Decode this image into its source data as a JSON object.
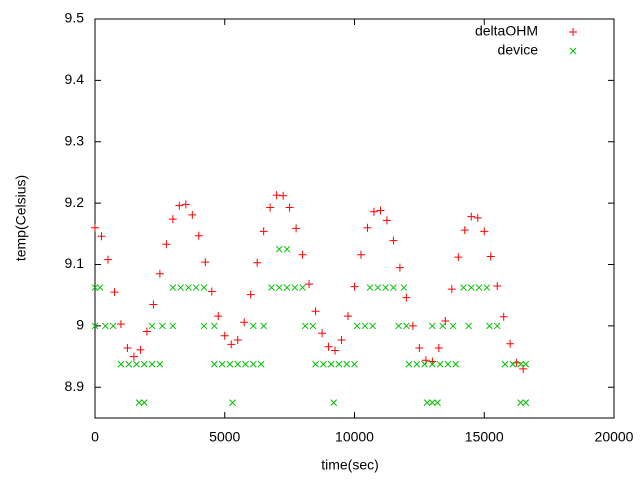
{
  "chart_data": {
    "type": "scatter",
    "xlabel": "time(sec)",
    "ylabel": "temp(Celsius)",
    "xlim": [
      0,
      20000
    ],
    "xticks": [
      0,
      5000,
      10000,
      15000,
      20000
    ],
    "ylim": [
      8.85,
      9.5
    ],
    "yticks": [
      8.9,
      9,
      9.1,
      9.2,
      9.3,
      9.4,
      9.5
    ],
    "legend": "top-right",
    "series": [
      {
        "name": "deltaOHM",
        "color": "#ff0000",
        "marker": "plus",
        "x": [
          0,
          250,
          500,
          750,
          1000,
          1250,
          1500,
          1750,
          2000,
          2250,
          2500,
          2750,
          3000,
          3250,
          3500,
          3750,
          4000,
          4250,
          4500,
          4750,
          5000,
          5250,
          5500,
          5750,
          6000,
          6250,
          6500,
          6750,
          7000,
          7250,
          7500,
          7750,
          8000,
          8250,
          8500,
          8750,
          9000,
          9250,
          9500,
          9750,
          10000,
          10250,
          10500,
          10750,
          11000,
          11250,
          11500,
          11750,
          12000,
          12250,
          12500,
          12750,
          13000,
          13250,
          13500,
          13750,
          14000,
          14250,
          14500,
          14750,
          15000,
          15250,
          15500,
          15750,
          16000,
          16250,
          16500
        ],
        "values": [
          9.16,
          9.146,
          9.108,
          9.055,
          9.003,
          8.964,
          8.95,
          8.961,
          8.991,
          9.035,
          9.085,
          9.133,
          9.174,
          9.196,
          9.198,
          9.181,
          9.147,
          9.104,
          9.056,
          9.016,
          8.984,
          8.97,
          8.977,
          9.006,
          9.051,
          9.103,
          9.154,
          9.193,
          9.213,
          9.212,
          9.193,
          9.159,
          9.116,
          9.068,
          9.024,
          8.988,
          8.966,
          8.96,
          8.977,
          9.016,
          9.064,
          9.116,
          9.16,
          9.186,
          9.188,
          9.172,
          9.139,
          9.095,
          9.046,
          9.0,
          8.964,
          8.944,
          8.942,
          8.964,
          9.008,
          9.06,
          9.112,
          9.156,
          9.178,
          9.176,
          9.154,
          9.113,
          9.065,
          9.015,
          8.971,
          8.94,
          8.93
        ]
      },
      {
        "name": "device",
        "color": "#00c000",
        "marker": "cross",
        "x": [
          0,
          200,
          0,
          400,
          700,
          1000,
          1300,
          1600,
          1700,
          1900,
          1900,
          2200,
          2200,
          2500,
          2600,
          3000,
          3000,
          3300,
          3600,
          3900,
          4200,
          4200,
          4600,
          4600,
          4900,
          5200,
          5300,
          5500,
          5800,
          6100,
          6100,
          6400,
          6500,
          6800,
          7100,
          7100,
          7400,
          7400,
          7700,
          8000,
          8100,
          8400,
          8500,
          8800,
          9100,
          9200,
          9400,
          9700,
          10000,
          10100,
          10400,
          10600,
          10700,
          10900,
          11200,
          11500,
          11700,
          11900,
          12000,
          12100,
          12400,
          12700,
          12800,
          13000,
          13000,
          13200,
          13000,
          13300,
          13400,
          13600,
          13800,
          13900,
          14200,
          14400,
          14500,
          14800,
          15100,
          15200,
          15500,
          15800,
          16100,
          16400,
          16400,
          16600,
          16600
        ],
        "values": [
          9.0625,
          9.0625,
          9.0,
          9.0,
          9.0,
          8.9375,
          8.9375,
          8.9375,
          8.875,
          8.875,
          8.9375,
          8.9375,
          9.0,
          8.9375,
          9.0,
          9.0625,
          9.0,
          9.0625,
          9.0625,
          9.0625,
          9.0625,
          9.0,
          9.0,
          8.9375,
          8.9375,
          8.9375,
          8.875,
          8.9375,
          8.9375,
          8.9375,
          9.0,
          8.9375,
          9.0,
          9.0625,
          9.125,
          9.0625,
          9.125,
          9.0625,
          9.0625,
          9.0625,
          9.0,
          9.0,
          8.9375,
          8.9375,
          8.9375,
          8.875,
          8.9375,
          8.9375,
          8.9375,
          9.0,
          9.0,
          9.0625,
          9.0,
          9.0625,
          9.0625,
          9.0625,
          9.0,
          9.0625,
          9.0,
          8.9375,
          8.9375,
          8.9375,
          8.875,
          8.875,
          8.9375,
          8.875,
          9.0,
          8.9375,
          9.0,
          8.9375,
          9.0,
          8.9375,
          9.0625,
          9.0,
          9.0625,
          9.0625,
          9.0625,
          9.0,
          9.0,
          8.9375,
          8.9375,
          8.875,
          8.9375,
          8.875,
          8.9375
        ]
      }
    ]
  }
}
